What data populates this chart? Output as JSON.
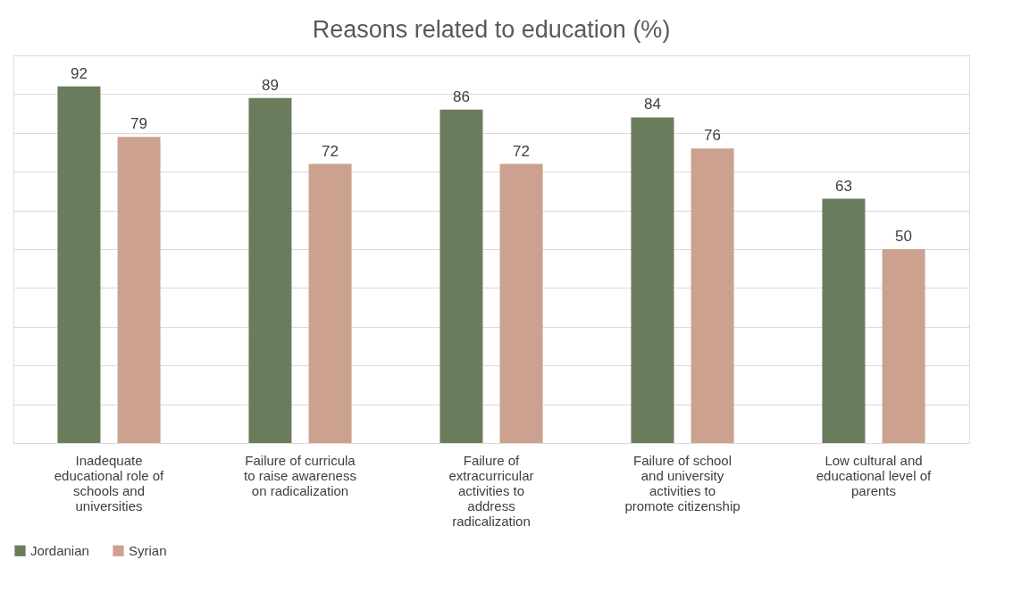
{
  "chart_data": {
    "type": "bar",
    "title": "Reasons related to education (%)",
    "categories": [
      "Inadequate educational role of schools and universities",
      "Failure of curricula to raise awareness on radicalization",
      "Failure of extracurricular activities to address radicalization",
      "Failure of school and university activities to promote citizenship",
      "Low cultural and educational level of parents"
    ],
    "series": [
      {
        "name": "Jordanian",
        "color": "#6b7c5c",
        "values": [
          92,
          89,
          86,
          84,
          63
        ]
      },
      {
        "name": "Syrian",
        "color": "#cda18f",
        "values": [
          79,
          72,
          72,
          76,
          50
        ]
      }
    ],
    "ylim": [
      0,
      100
    ],
    "yticks": [
      0,
      10,
      20,
      30,
      40,
      50,
      60,
      70,
      80,
      90,
      100
    ],
    "tick_labels": "x",
    "grid": "y",
    "legend": "bottom",
    "data_labels": true
  }
}
